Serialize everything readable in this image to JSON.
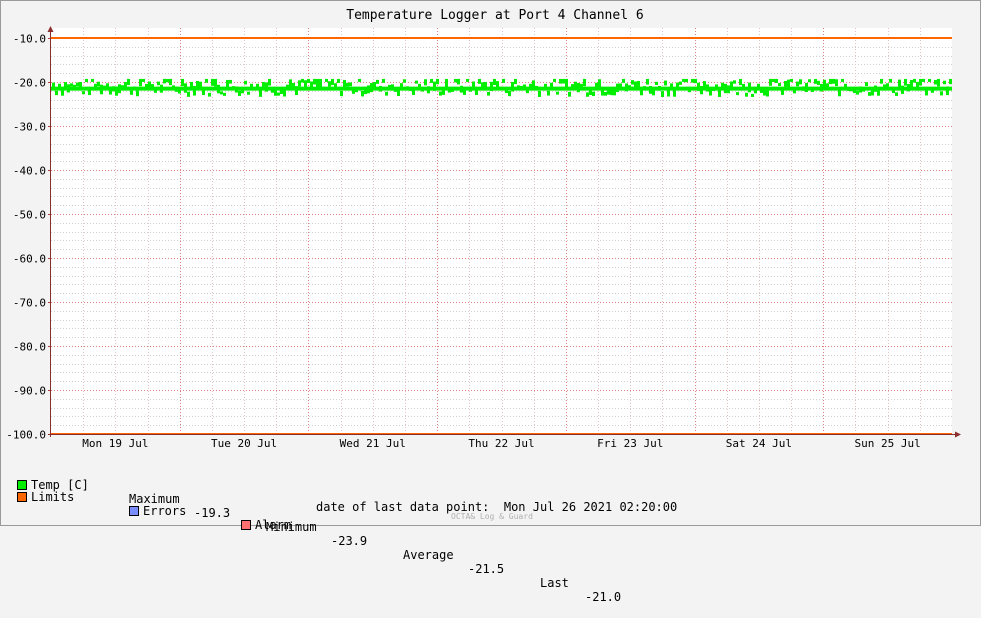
{
  "chart_data": {
    "type": "line",
    "title": "Temperature Logger at Port 4 Channel 6",
    "ylim": [
      -100.0,
      -10.0
    ],
    "y_ticks": [
      "-10.0",
      "-20.0",
      "-30.0",
      "-40.0",
      "-50.0",
      "-60.0",
      "-70.0",
      "-80.0",
      "-90.0",
      "-100.0"
    ],
    "x_ticks": [
      "Mon 19 Jul",
      "Tue 20 Jul",
      "Wed 21 Jul",
      "Thu 22 Jul",
      "Fri 23 Jul",
      "Sat 24 Jul",
      "Sun 25 Jul"
    ],
    "grid": true,
    "series": [
      {
        "name": "Temp [C]",
        "color": "#00ee00",
        "mean": -21.5,
        "max": -19.3,
        "min": -23.9,
        "last": -21.0,
        "noisy": true
      },
      {
        "name": "Limits",
        "color": "#ff6600",
        "upper": -10.0,
        "lower": -100.0
      }
    ]
  },
  "legend": {
    "temp": {
      "label": "Temp [C]",
      "color": "#00ee00"
    },
    "stats": {
      "max_label": "Maximum",
      "max_value": "-19.3",
      "min_label": "Minimum",
      "min_value": "-23.9",
      "avg_label": "Average",
      "avg_value": "-21.5",
      "last_label": "Last",
      "last_value": "-21.0"
    },
    "limits": {
      "label": "Limits",
      "color": "#ff6600"
    },
    "errors": {
      "label": "Errors",
      "color": "#7a8cff"
    },
    "alarm": {
      "label": "Alarm",
      "color": "#ff7070"
    }
  },
  "footer": {
    "last_point_label": "date of last data point:",
    "last_point_value": "Mon Jul 26 2021 02:20:00",
    "credit": "OCTA& Log & Guard"
  }
}
